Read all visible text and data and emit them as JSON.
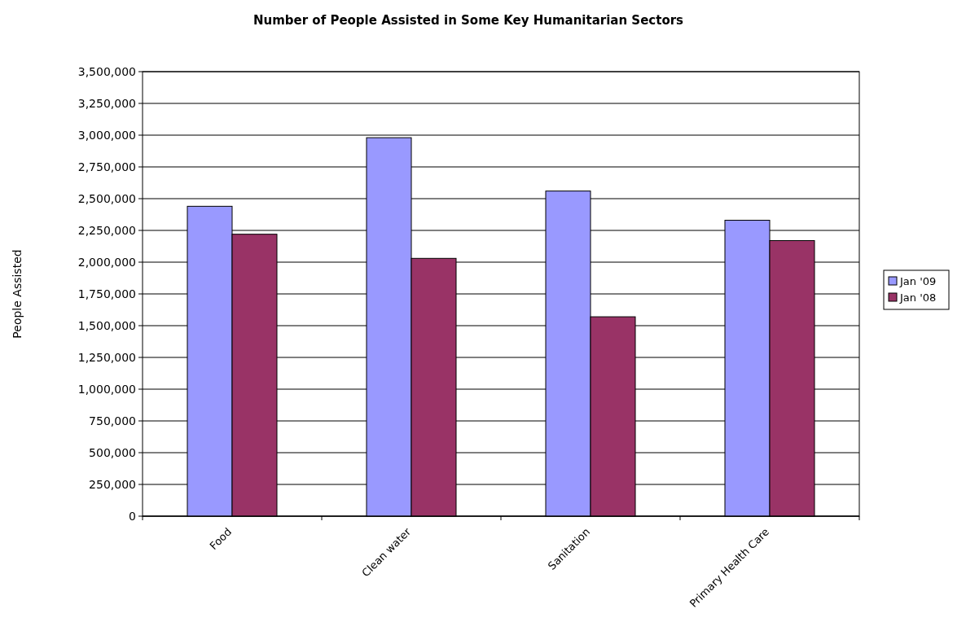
{
  "chart_data": {
    "type": "bar",
    "title": "Number of People Assisted in Some Key Humanitarian Sectors",
    "ylabel": "People Assisted",
    "categories": [
      "Food",
      "Clean water",
      "Sanitation",
      "Primary Health Care"
    ],
    "series": [
      {
        "name": "Jan '09",
        "color": "#9999ff",
        "values": [
          2440000,
          2980000,
          2560000,
          2330000
        ]
      },
      {
        "name": "Jan '08",
        "color": "#993366",
        "values": [
          2220000,
          2030000,
          1570000,
          2170000
        ]
      }
    ],
    "ylim": [
      0,
      3500000
    ],
    "yticks": [
      {
        "value": 0,
        "label": "0"
      },
      {
        "value": 250000,
        "label": "250,000"
      },
      {
        "value": 500000,
        "label": "500,000"
      },
      {
        "value": 750000,
        "label": "750,000"
      },
      {
        "value": 1000000,
        "label": "1,000,000"
      },
      {
        "value": 1250000,
        "label": "1,250,000"
      },
      {
        "value": 1500000,
        "label": "1,500,000"
      },
      {
        "value": 1750000,
        "label": "1,750,000"
      },
      {
        "value": 2000000,
        "label": "2,000,000"
      },
      {
        "value": 2250000,
        "label": "2,250,000"
      },
      {
        "value": 2500000,
        "label": "2,500,000"
      },
      {
        "value": 2750000,
        "label": "2,750,000"
      },
      {
        "value": 3000000,
        "label": "3,000,000"
      },
      {
        "value": 3250000,
        "label": "3,250,000"
      },
      {
        "value": 3500000,
        "label": "3,500,000"
      }
    ],
    "grid": "y",
    "legend": "right"
  }
}
